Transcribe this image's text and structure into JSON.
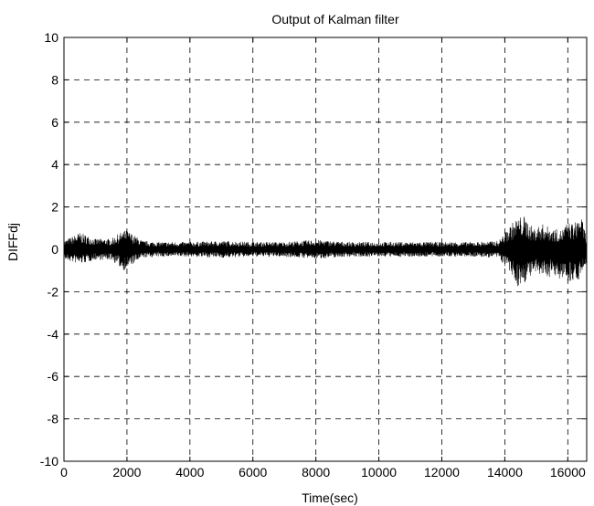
{
  "chart_data": {
    "type": "line",
    "title": "Output of Kalman filter",
    "xlabel": "Time(sec)",
    "ylabel": "DIFFdj",
    "xlim": [
      0,
      16600
    ],
    "ylim": [
      -10,
      10
    ],
    "xticks": [
      0,
      2000,
      4000,
      6000,
      8000,
      10000,
      12000,
      14000,
      16000
    ],
    "yticks": [
      -10,
      -8,
      -6,
      -4,
      -2,
      0,
      2,
      4,
      6,
      8,
      10
    ],
    "grid": true,
    "grid_style": "dashed",
    "line_color": "#000000",
    "series": [
      {
        "x": [
          0,
          500,
          1000,
          1500,
          1900,
          2000,
          2500,
          3000,
          4000,
          5000,
          6000,
          7000,
          8000,
          9000,
          10000,
          11000,
          12000,
          13000,
          13800,
          14200,
          14400,
          14600,
          14900,
          15200,
          15500,
          15800,
          16000,
          16200,
          16400,
          16600
        ],
        "y": [
          0.0,
          0.8,
          0.3,
          0.4,
          -0.9,
          0.9,
          0.3,
          0.3,
          0.3,
          0.3,
          0.3,
          0.3,
          0.4,
          0.3,
          0.3,
          0.3,
          0.3,
          0.3,
          0.3,
          1.3,
          -1.8,
          1.6,
          -1.2,
          1.3,
          -1.3,
          -1.4,
          1.5,
          -1.5,
          1.7,
          0.2
        ],
        "envelope_upper": [
          0.4,
          0.8,
          0.5,
          0.5,
          0.9,
          0.9,
          0.4,
          0.35,
          0.35,
          0.4,
          0.35,
          0.35,
          0.45,
          0.35,
          0.35,
          0.35,
          0.35,
          0.35,
          0.4,
          1.2,
          1.5,
          1.6,
          1.0,
          1.2,
          1.0,
          0.9,
          1.3,
          1.2,
          1.7,
          0.6
        ],
        "envelope_lower": [
          -0.5,
          -0.7,
          -0.5,
          -0.5,
          -1.0,
          -0.9,
          -0.4,
          -0.35,
          -0.35,
          -0.4,
          -0.35,
          -0.35,
          -0.45,
          -0.35,
          -0.35,
          -0.35,
          -0.35,
          -0.35,
          -0.4,
          -1.2,
          -1.8,
          -1.6,
          -1.2,
          -1.3,
          -1.3,
          -1.4,
          -1.5,
          -1.5,
          -1.4,
          -0.6
        ]
      }
    ]
  }
}
